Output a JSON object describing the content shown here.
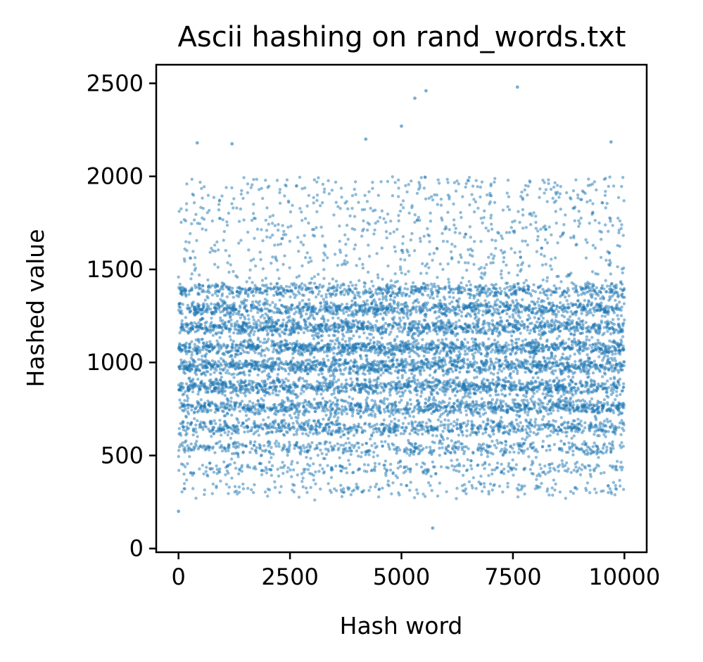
{
  "chart_data": {
    "type": "scatter",
    "title": "Ascii hashing on rand_words.txt",
    "xlabel": "Hash word",
    "ylabel": "Hashed value",
    "xlim": [
      -500,
      10500
    ],
    "ylim": [
      -20,
      2600
    ],
    "xticks": [
      0,
      2500,
      5000,
      7500,
      10000
    ],
    "yticks": [
      0,
      500,
      1000,
      1500,
      2000,
      2500
    ],
    "grid": false,
    "legend": "none",
    "n_points": 10000,
    "band_centers": [
      1390,
      1290,
      1190,
      1080,
      980,
      870,
      760,
      650,
      540,
      430,
      320
    ],
    "band_weights": [
      0.08,
      0.11,
      0.12,
      0.13,
      0.13,
      0.12,
      0.11,
      0.09,
      0.055,
      0.035,
      0.02
    ],
    "outliers": [
      {
        "x": 0,
        "y": 200
      },
      {
        "x": 420,
        "y": 2180
      },
      {
        "x": 1200,
        "y": 2175
      },
      {
        "x": 4200,
        "y": 2200
      },
      {
        "x": 5000,
        "y": 2270
      },
      {
        "x": 5300,
        "y": 2420
      },
      {
        "x": 5550,
        "y": 2460
      },
      {
        "x": 7600,
        "y": 2480
      },
      {
        "x": 9700,
        "y": 2185
      },
      {
        "x": 5700,
        "y": 110
      }
    ],
    "series": [
      {
        "color": "#1f77b4"
      }
    ]
  }
}
